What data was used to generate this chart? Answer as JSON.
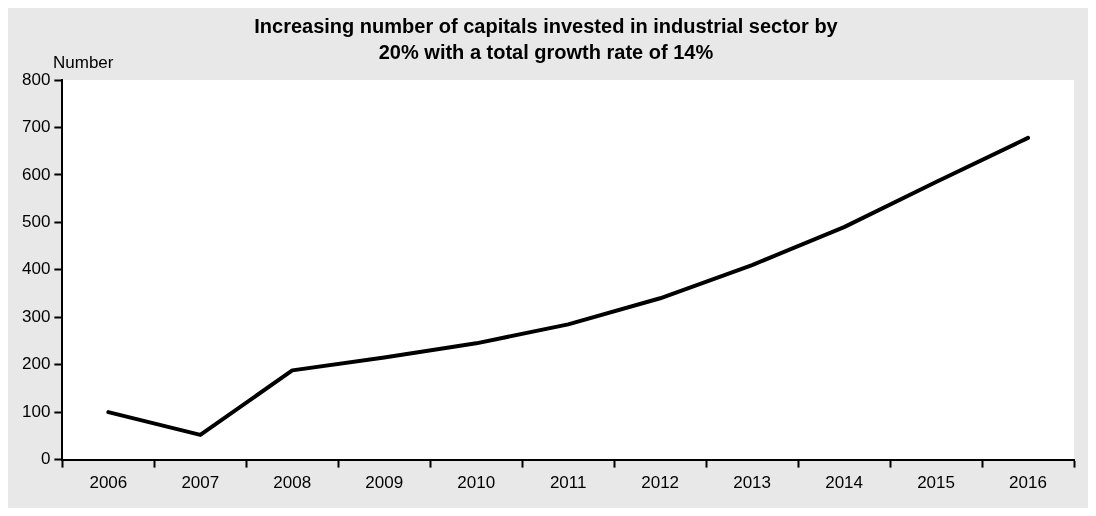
{
  "chart_data": {
    "type": "line",
    "title": "Increasing number of capitals invested in industrial sector by\n20% with a total growth rate of 14%",
    "ylabel": "Number",
    "categories": [
      "2006",
      "2007",
      "2008",
      "2009",
      "2010",
      "2011",
      "2012",
      "2013",
      "2014",
      "2015",
      "2016"
    ],
    "series": [
      {
        "color": "#000000",
        "values": [
          100,
          52,
          188,
          215,
          245,
          285,
          340,
          410,
          490,
          585,
          678
        ]
      }
    ],
    "ylim": [
      0,
      800
    ],
    "yticks": [
      0,
      100,
      200,
      300,
      400,
      500,
      600,
      700,
      800
    ],
    "grid": false,
    "legend": false,
    "marker": "none",
    "line_style": "solid"
  }
}
